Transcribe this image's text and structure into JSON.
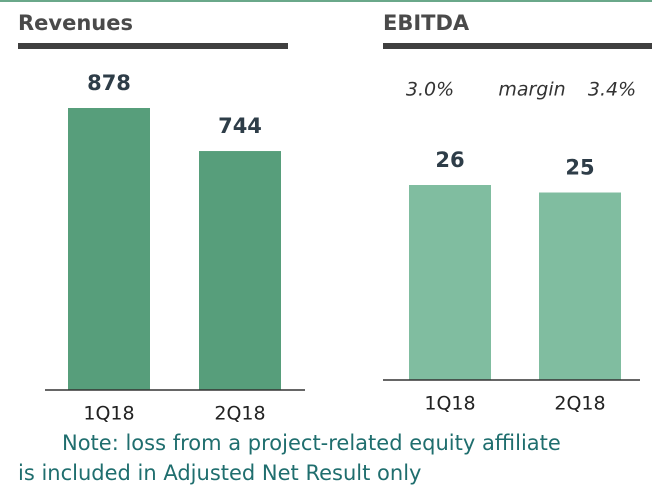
{
  "chart_data": [
    {
      "type": "bar",
      "title": "Revenues",
      "categories": [
        "1Q18",
        "2Q18"
      ],
      "values": [
        878,
        744
      ],
      "color": "#579e7b"
    },
    {
      "type": "bar",
      "title": "EBITDA",
      "categories": [
        "1Q18",
        "2Q18"
      ],
      "values": [
        26,
        25
      ],
      "color": "#80bda0",
      "annotations": [
        "3.0%",
        "margin",
        "3.4%"
      ]
    }
  ],
  "note": [
    "Note: loss from a project-related equity affiliate",
    "is included in Adjusted Net Result only"
  ]
}
